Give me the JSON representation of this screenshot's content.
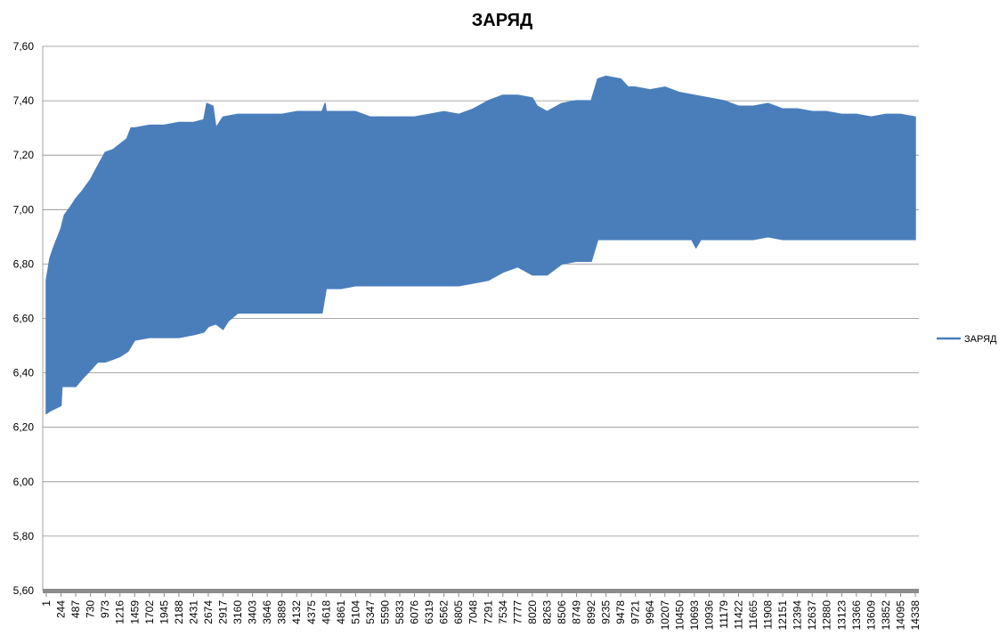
{
  "chart_data": {
    "type": "area",
    "title": "ЗАРЯД",
    "xlabel": "",
    "ylabel": "",
    "ylim": [
      5.6,
      7.6
    ],
    "y_ticks": [
      "5,60",
      "5,80",
      "6,00",
      "6,20",
      "6,40",
      "6,60",
      "6,80",
      "7,00",
      "7,20",
      "7,40",
      "7,60"
    ],
    "x_range": [
      1,
      14338
    ],
    "x_ticks": [
      "1",
      "244",
      "487",
      "730",
      "973",
      "1216",
      "1459",
      "1702",
      "1945",
      "2188",
      "2431",
      "2674",
      "2917",
      "3160",
      "3403",
      "3646",
      "3889",
      "4132",
      "4375",
      "4618",
      "4861",
      "5104",
      "5347",
      "5590",
      "5833",
      "6076",
      "6319",
      "6562",
      "6805",
      "7048",
      "7291",
      "7534",
      "7777",
      "8020",
      "8263",
      "8506",
      "8749",
      "8992",
      "9235",
      "9478",
      "9721",
      "9964",
      "10207",
      "10450",
      "10693",
      "10936",
      "11179",
      "11422",
      "11665",
      "11908",
      "12151",
      "12394",
      "12637",
      "12880",
      "13123",
      "13366",
      "13609",
      "13852",
      "14095",
      "14338"
    ],
    "grid": true,
    "legend": "right",
    "series": [
      {
        "name": "ЗАРЯД",
        "color": "#4a7ebb",
        "note_upper_envelope": "upper",
        "upper": [
          [
            1,
            6.74
          ],
          [
            60,
            6.82
          ],
          [
            120,
            6.86
          ],
          [
            244,
            6.93
          ],
          [
            300,
            6.98
          ],
          [
            400,
            7.01
          ],
          [
            487,
            7.04
          ],
          [
            600,
            7.07
          ],
          [
            730,
            7.11
          ],
          [
            850,
            7.16
          ],
          [
            973,
            7.21
          ],
          [
            1100,
            7.22
          ],
          [
            1216,
            7.24
          ],
          [
            1330,
            7.26
          ],
          [
            1400,
            7.3
          ],
          [
            1459,
            7.3
          ],
          [
            1702,
            7.31
          ],
          [
            1945,
            7.31
          ],
          [
            2188,
            7.32
          ],
          [
            2431,
            7.32
          ],
          [
            2600,
            7.33
          ],
          [
            2650,
            7.39
          ],
          [
            2750,
            7.38
          ],
          [
            2800,
            7.3
          ],
          [
            2917,
            7.34
          ],
          [
            3160,
            7.35
          ],
          [
            3403,
            7.35
          ],
          [
            3646,
            7.35
          ],
          [
            3889,
            7.35
          ],
          [
            4132,
            7.36
          ],
          [
            4375,
            7.36
          ],
          [
            4550,
            7.36
          ],
          [
            4600,
            7.39
          ],
          [
            4618,
            7.36
          ],
          [
            4861,
            7.36
          ],
          [
            5104,
            7.36
          ],
          [
            5347,
            7.34
          ],
          [
            5590,
            7.34
          ],
          [
            5833,
            7.34
          ],
          [
            6076,
            7.34
          ],
          [
            6319,
            7.35
          ],
          [
            6562,
            7.36
          ],
          [
            6805,
            7.35
          ],
          [
            7048,
            7.37
          ],
          [
            7291,
            7.4
          ],
          [
            7534,
            7.42
          ],
          [
            7777,
            7.42
          ],
          [
            8020,
            7.41
          ],
          [
            8100,
            7.38
          ],
          [
            8263,
            7.36
          ],
          [
            8506,
            7.39
          ],
          [
            8749,
            7.4
          ],
          [
            8992,
            7.4
          ],
          [
            9100,
            7.48
          ],
          [
            9235,
            7.49
          ],
          [
            9478,
            7.48
          ],
          [
            9600,
            7.45
          ],
          [
            9721,
            7.45
          ],
          [
            9964,
            7.44
          ],
          [
            10207,
            7.45
          ],
          [
            10450,
            7.43
          ],
          [
            10693,
            7.42
          ],
          [
            10936,
            7.41
          ],
          [
            11179,
            7.4
          ],
          [
            11422,
            7.38
          ],
          [
            11665,
            7.38
          ],
          [
            11908,
            7.39
          ],
          [
            12151,
            7.37
          ],
          [
            12394,
            7.37
          ],
          [
            12637,
            7.36
          ],
          [
            12880,
            7.36
          ],
          [
            13123,
            7.35
          ],
          [
            13366,
            7.35
          ],
          [
            13609,
            7.34
          ],
          [
            13852,
            7.35
          ],
          [
            14095,
            7.35
          ],
          [
            14338,
            7.34
          ]
        ],
        "lower": [
          [
            1,
            6.25
          ],
          [
            60,
            6.26
          ],
          [
            244,
            6.28
          ],
          [
            260,
            6.35
          ],
          [
            487,
            6.35
          ],
          [
            600,
            6.38
          ],
          [
            730,
            6.41
          ],
          [
            850,
            6.44
          ],
          [
            973,
            6.44
          ],
          [
            1100,
            6.45
          ],
          [
            1216,
            6.46
          ],
          [
            1350,
            6.48
          ],
          [
            1459,
            6.52
          ],
          [
            1702,
            6.53
          ],
          [
            1945,
            6.53
          ],
          [
            2188,
            6.53
          ],
          [
            2431,
            6.54
          ],
          [
            2600,
            6.55
          ],
          [
            2674,
            6.57
          ],
          [
            2800,
            6.58
          ],
          [
            2917,
            6.56
          ],
          [
            3000,
            6.59
          ],
          [
            3160,
            6.62
          ],
          [
            3403,
            6.62
          ],
          [
            3646,
            6.62
          ],
          [
            3889,
            6.62
          ],
          [
            4132,
            6.62
          ],
          [
            4375,
            6.62
          ],
          [
            4550,
            6.62
          ],
          [
            4618,
            6.71
          ],
          [
            4861,
            6.71
          ],
          [
            5104,
            6.72
          ],
          [
            5347,
            6.72
          ],
          [
            5590,
            6.72
          ],
          [
            5833,
            6.72
          ],
          [
            6076,
            6.72
          ],
          [
            6319,
            6.72
          ],
          [
            6562,
            6.72
          ],
          [
            6805,
            6.72
          ],
          [
            7048,
            6.73
          ],
          [
            7291,
            6.74
          ],
          [
            7534,
            6.77
          ],
          [
            7777,
            6.79
          ],
          [
            8020,
            6.76
          ],
          [
            8263,
            6.76
          ],
          [
            8506,
            6.8
          ],
          [
            8749,
            6.81
          ],
          [
            8992,
            6.81
          ],
          [
            9100,
            6.89
          ],
          [
            9235,
            6.89
          ],
          [
            9478,
            6.89
          ],
          [
            9721,
            6.89
          ],
          [
            9964,
            6.89
          ],
          [
            10207,
            6.89
          ],
          [
            10450,
            6.89
          ],
          [
            10650,
            6.89
          ],
          [
            10720,
            6.86
          ],
          [
            10800,
            6.89
          ],
          [
            10936,
            6.89
          ],
          [
            11179,
            6.89
          ],
          [
            11422,
            6.89
          ],
          [
            11665,
            6.89
          ],
          [
            11908,
            6.9
          ],
          [
            12151,
            6.89
          ],
          [
            12394,
            6.89
          ],
          [
            12637,
            6.89
          ],
          [
            12880,
            6.89
          ],
          [
            13123,
            6.89
          ],
          [
            13366,
            6.89
          ],
          [
            13609,
            6.89
          ],
          [
            13852,
            6.89
          ],
          [
            14095,
            6.89
          ],
          [
            14338,
            6.89
          ]
        ]
      }
    ]
  }
}
